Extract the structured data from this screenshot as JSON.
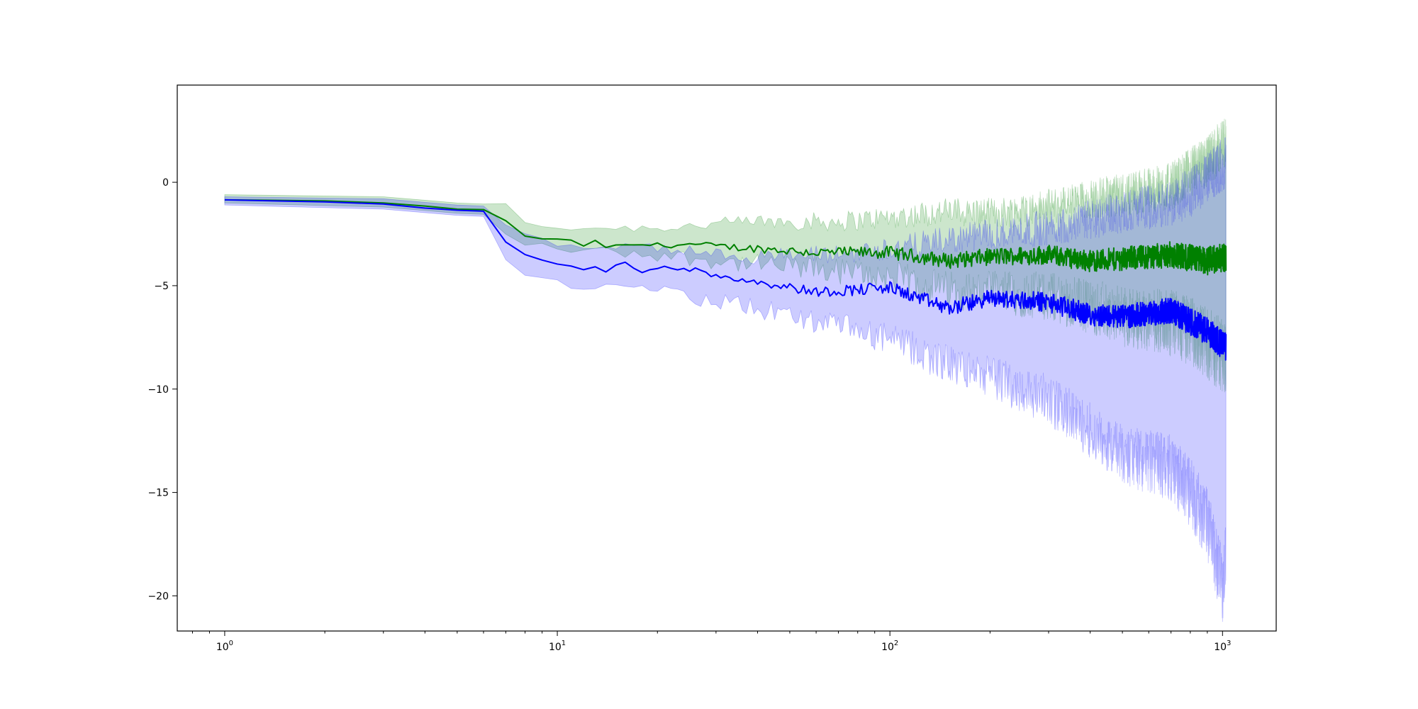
{
  "chart_data": {
    "type": "line",
    "title": "",
    "xlabel": "",
    "ylabel": "",
    "x_scale": "log",
    "xlim": [
      0.72,
      1450
    ],
    "ylim": [
      -21.7,
      4.7
    ],
    "grid": false,
    "legend": "none",
    "x_ticks": [
      {
        "value": 1,
        "base": "10",
        "exp": "0"
      },
      {
        "value": 10,
        "base": "10",
        "exp": "1"
      },
      {
        "value": 100,
        "base": "10",
        "exp": "2"
      },
      {
        "value": 1000,
        "base": "10",
        "exp": "3"
      }
    ],
    "y_ticks": [
      {
        "value": 0,
        "label": "0"
      },
      {
        "value": -5,
        "label": "−5"
      },
      {
        "value": -10,
        "label": "−10"
      },
      {
        "value": -15,
        "label": "−15"
      },
      {
        "value": -20,
        "label": "−20"
      }
    ],
    "series": [
      {
        "color": "#008000",
        "band_color": "#008000",
        "band_opacity": 0.2,
        "points": [
          [
            1,
            -0.85
          ],
          [
            2,
            -0.9
          ],
          [
            3,
            -1.0
          ],
          [
            4,
            -1.15
          ],
          [
            5,
            -1.3
          ],
          [
            6,
            -1.32
          ],
          [
            7,
            -1.9
          ],
          [
            8,
            -2.6
          ],
          [
            10,
            -2.8
          ],
          [
            11,
            -2.85
          ],
          [
            12,
            -3.05
          ],
          [
            13,
            -2.9
          ],
          [
            14,
            -3.1
          ],
          [
            16,
            -3.1
          ],
          [
            18,
            -3.0
          ],
          [
            20,
            -3.05
          ],
          [
            25,
            -3.0
          ],
          [
            30,
            -3.1
          ],
          [
            40,
            -3.2
          ],
          [
            60,
            -3.4
          ],
          [
            100,
            -3.4
          ],
          [
            150,
            -3.8
          ],
          [
            200,
            -3.6
          ],
          [
            300,
            -3.5
          ],
          [
            400,
            -3.8
          ],
          [
            500,
            -3.7
          ],
          [
            700,
            -3.5
          ],
          [
            900,
            -3.8
          ],
          [
            1024,
            -3.6
          ]
        ],
        "band_upper": [
          [
            1,
            -0.6
          ],
          [
            3,
            -0.7
          ],
          [
            5,
            -1.0
          ],
          [
            6,
            -1.05
          ],
          [
            7,
            -1.1
          ],
          [
            8,
            -2.0
          ],
          [
            10,
            -2.2
          ],
          [
            20,
            -2.2
          ],
          [
            40,
            -1.9
          ],
          [
            70,
            -1.9
          ],
          [
            100,
            -1.7
          ],
          [
            150,
            -1.4
          ],
          [
            200,
            -1.5
          ],
          [
            300,
            -1.2
          ],
          [
            400,
            -0.8
          ],
          [
            500,
            -0.6
          ],
          [
            700,
            -0.2
          ],
          [
            800,
            0.5
          ],
          [
            900,
            1.0
          ],
          [
            1024,
            2.0
          ]
        ],
        "band_lower": [
          [
            1,
            -1.0
          ],
          [
            3,
            -1.2
          ],
          [
            5,
            -1.5
          ],
          [
            6,
            -1.55
          ],
          [
            7,
            -2.4
          ],
          [
            8,
            -3.0
          ],
          [
            10,
            -3.2
          ],
          [
            20,
            -3.5
          ],
          [
            40,
            -4.0
          ],
          [
            70,
            -4.3
          ],
          [
            100,
            -4.6
          ],
          [
            150,
            -5.2
          ],
          [
            200,
            -5.3
          ],
          [
            300,
            -5.5
          ],
          [
            400,
            -6.0
          ],
          [
            500,
            -6.5
          ],
          [
            700,
            -6.8
          ],
          [
            800,
            -7.2
          ],
          [
            900,
            -7.8
          ],
          [
            1024,
            -8.5
          ]
        ]
      },
      {
        "color": "#0000ff",
        "band_color": "#0000ff",
        "band_opacity": 0.2,
        "points": [
          [
            1,
            -0.85
          ],
          [
            2,
            -0.95
          ],
          [
            3,
            -1.05
          ],
          [
            4,
            -1.25
          ],
          [
            5,
            -1.35
          ],
          [
            6,
            -1.4
          ],
          [
            7,
            -2.9
          ],
          [
            8,
            -3.5
          ],
          [
            10,
            -4.0
          ],
          [
            11,
            -4.1
          ],
          [
            12,
            -4.2
          ],
          [
            13,
            -4.1
          ],
          [
            14,
            -4.3
          ],
          [
            16,
            -3.9
          ],
          [
            18,
            -4.3
          ],
          [
            20,
            -4.05
          ],
          [
            25,
            -4.2
          ],
          [
            30,
            -4.5
          ],
          [
            40,
            -4.8
          ],
          [
            60,
            -5.3
          ],
          [
            100,
            -5.1
          ],
          [
            150,
            -6.1
          ],
          [
            200,
            -5.6
          ],
          [
            300,
            -5.8
          ],
          [
            400,
            -6.4
          ],
          [
            500,
            -6.5
          ],
          [
            700,
            -6.2
          ],
          [
            900,
            -7.2
          ],
          [
            1024,
            -8.0
          ]
        ],
        "band_upper": [
          [
            1,
            -0.7
          ],
          [
            3,
            -0.8
          ],
          [
            5,
            -1.1
          ],
          [
            6,
            -1.15
          ],
          [
            7,
            -2.0
          ],
          [
            8,
            -2.6
          ],
          [
            10,
            -3.0
          ],
          [
            20,
            -3.2
          ],
          [
            40,
            -3.6
          ],
          [
            70,
            -3.5
          ],
          [
            100,
            -3.2
          ],
          [
            150,
            -2.8
          ],
          [
            200,
            -2.5
          ],
          [
            300,
            -2.2
          ],
          [
            400,
            -1.8
          ],
          [
            500,
            -1.4
          ],
          [
            700,
            -1.0
          ],
          [
            800,
            -0.5
          ],
          [
            900,
            0.2
          ],
          [
            1024,
            1.0
          ]
        ],
        "band_lower": [
          [
            1,
            -1.1
          ],
          [
            3,
            -1.3
          ],
          [
            5,
            -1.6
          ],
          [
            6,
            -1.65
          ],
          [
            7,
            -3.8
          ],
          [
            8,
            -4.4
          ],
          [
            10,
            -4.9
          ],
          [
            20,
            -5.3
          ],
          [
            40,
            -6.1
          ],
          [
            70,
            -7.0
          ],
          [
            100,
            -7.6
          ],
          [
            150,
            -8.8
          ],
          [
            200,
            -9.4
          ],
          [
            300,
            -10.5
          ],
          [
            400,
            -12.0
          ],
          [
            500,
            -13.2
          ],
          [
            700,
            -13.8
          ],
          [
            800,
            -15.0
          ],
          [
            900,
            -16.5
          ],
          [
            1000,
            -19.5
          ],
          [
            1024,
            -18.0
          ]
        ]
      }
    ]
  }
}
